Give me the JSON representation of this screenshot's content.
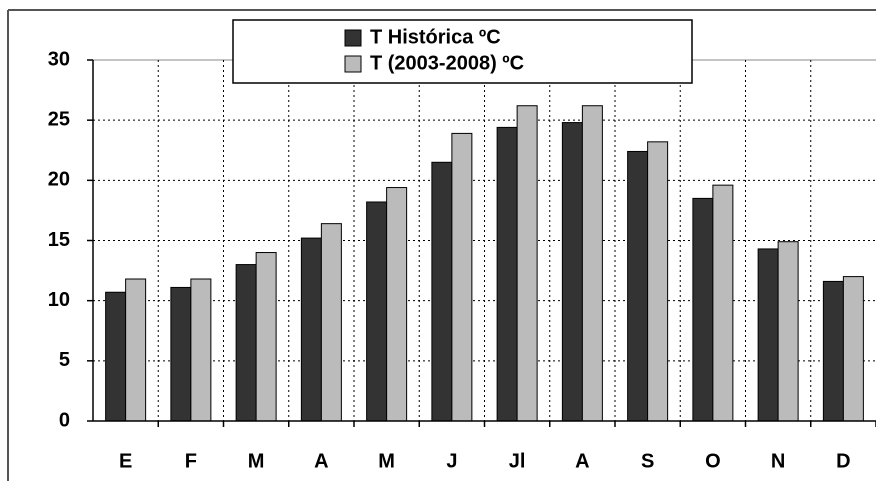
{
  "chart_data": {
    "type": "bar",
    "categories": [
      "E",
      "F",
      "M",
      "A",
      "M",
      "J",
      "Jl",
      "A",
      "S",
      "O",
      "N",
      "D"
    ],
    "series": [
      {
        "name": "T Histórica ºC",
        "color": "#333333",
        "values": [
          10.7,
          11.1,
          13.0,
          15.2,
          18.2,
          21.5,
          24.4,
          24.8,
          22.4,
          18.5,
          14.3,
          11.6
        ]
      },
      {
        "name": "T (2003-2008) ºC",
        "color": "#bbbbbb",
        "values": [
          11.8,
          11.8,
          14.0,
          16.4,
          19.4,
          23.9,
          26.2,
          26.2,
          23.2,
          19.6,
          14.9,
          12.0
        ]
      }
    ],
    "ylim": [
      0,
      30
    ],
    "yticks": [
      0,
      5,
      10,
      15,
      20,
      25,
      30
    ],
    "grid": true,
    "legend": "top"
  }
}
